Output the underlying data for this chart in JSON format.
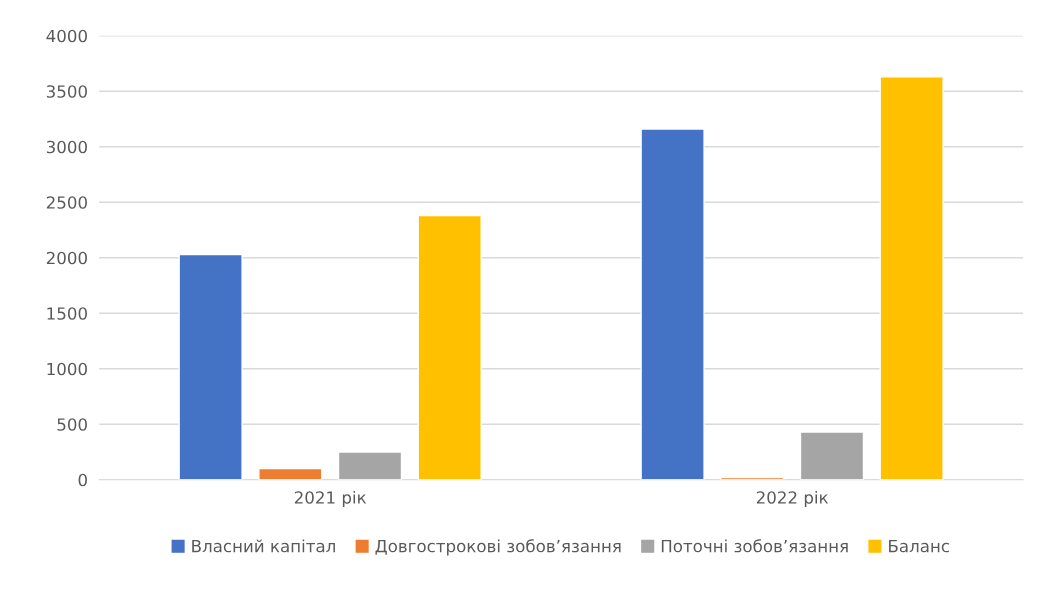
{
  "chart_data": {
    "type": "bar",
    "categories": [
      "2021 рік",
      "2022 рік"
    ],
    "series": [
      {
        "name": "Власний капітал",
        "color": "#4472c4",
        "values": [
          2030,
          3160
        ]
      },
      {
        "name": "Довгострокові зобов’язання",
        "color": "#ed7d31",
        "values": [
          100,
          20
        ]
      },
      {
        "name": "Поточні зобов’язання",
        "color": "#a5a5a5",
        "values": [
          250,
          430
        ]
      },
      {
        "name": "Баланс",
        "color": "#ffc000",
        "values": [
          2380,
          3630
        ]
      }
    ],
    "ylim": [
      0,
      4000
    ],
    "yticks": [
      0,
      500,
      1000,
      1500,
      2000,
      2500,
      3000,
      3500,
      4000
    ],
    "grid": "y",
    "legend": "bottom"
  }
}
